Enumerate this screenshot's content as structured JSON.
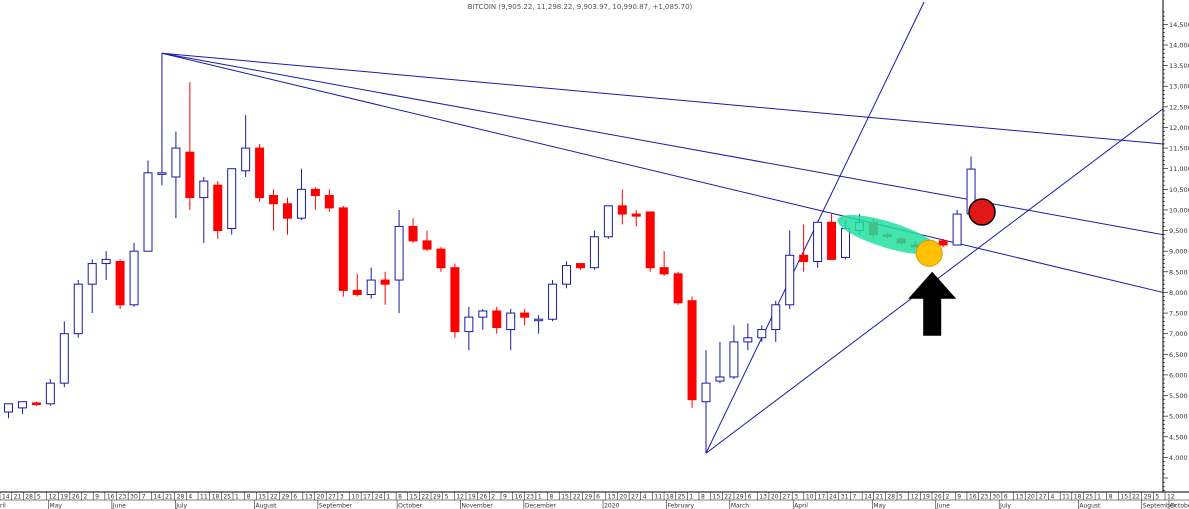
{
  "chart_data": {
    "type": "candlestick",
    "title": "BITCOIN (9,905.22, 11,298.22, 9,903.97, 10,990.87, +1,085.70)",
    "y_ticks": [
      4000,
      4500,
      5000,
      5500,
      6000,
      6500,
      7000,
      7500,
      8000,
      8500,
      9000,
      9500,
      10000,
      10500,
      11000,
      11500,
      12000,
      12500,
      13000,
      13500,
      14000,
      14500
    ],
    "ylim": [
      3500,
      14800
    ],
    "x_day_ticks": [
      "14",
      "21",
      "28",
      "5",
      "12",
      "19",
      "26",
      "2",
      "9",
      "16",
      "23",
      "30",
      "7",
      "14",
      "21",
      "28",
      "4",
      "11",
      "18",
      "25",
      "1",
      "8",
      "15",
      "22",
      "29",
      "6",
      "13",
      "20",
      "27",
      "3",
      "10",
      "17",
      "24",
      "1",
      "8",
      "15",
      "22",
      "29",
      "5",
      "12",
      "19",
      "26",
      "2",
      "9",
      "16",
      "23",
      "1",
      "8",
      "15",
      "22",
      "29",
      "6",
      "13",
      "20",
      "27",
      "4",
      "11",
      "18",
      "25",
      "1",
      "8",
      "15",
      "22",
      "29",
      "6",
      "13",
      "20",
      "27",
      "3",
      "10",
      "17",
      "24",
      "31",
      "7",
      "14",
      "21",
      "28",
      "5",
      "12",
      "19",
      "26",
      "2",
      "9",
      "16",
      "23",
      "30",
      "6",
      "13",
      "20",
      "27",
      "4",
      "11",
      "18",
      "25",
      "1",
      "8",
      "15",
      "22",
      "29",
      "5",
      "12"
    ],
    "x_month_labels": [
      {
        "label": "ril",
        "tick": 0
      },
      {
        "label": "May",
        "tick": 3
      },
      {
        "label": "June",
        "tick": 7
      },
      {
        "label": "July",
        "tick": 11
      },
      {
        "label": "August",
        "tick": 16
      },
      {
        "label": "September",
        "tick": 20
      },
      {
        "label": "October",
        "tick": 25
      },
      {
        "label": "November",
        "tick": 29
      },
      {
        "label": "December",
        "tick": 33
      },
      {
        "label": "2020",
        "tick": 38
      },
      {
        "label": "February",
        "tick": 42
      },
      {
        "label": "March",
        "tick": 46
      },
      {
        "label": "April",
        "tick": 50
      },
      {
        "label": "May",
        "tick": 55
      },
      {
        "label": "June",
        "tick": 59
      },
      {
        "label": "July",
        "tick": 63
      },
      {
        "label": "August",
        "tick": 68
      },
      {
        "label": "September",
        "tick": 72
      },
      {
        "label": "October",
        "tick": 76
      }
    ],
    "series": [
      {
        "values": [
          {
            "o": 5100,
            "h": 5300,
            "l": 4950,
            "c": 5300
          },
          {
            "o": 5200,
            "h": 5350,
            "l": 5050,
            "c": 5350
          },
          {
            "o": 5320,
            "h": 5350,
            "l": 5250,
            "c": 5280
          },
          {
            "o": 5300,
            "h": 5900,
            "l": 5250,
            "c": 5800
          },
          {
            "o": 5800,
            "h": 7300,
            "l": 5700,
            "c": 7000
          },
          {
            "o": 7000,
            "h": 8300,
            "l": 6900,
            "c": 8200
          },
          {
            "o": 8200,
            "h": 8800,
            "l": 7500,
            "c": 8700
          },
          {
            "o": 8700,
            "h": 9000,
            "l": 8300,
            "c": 8800
          },
          {
            "o": 8750,
            "h": 8800,
            "l": 7600,
            "c": 7700
          },
          {
            "o": 7700,
            "h": 9200,
            "l": 7650,
            "c": 9000
          },
          {
            "o": 9000,
            "h": 11200,
            "l": 9000,
            "c": 10900
          },
          {
            "o": 10900,
            "h": 13800,
            "l": 10600,
            "c": 10900
          },
          {
            "o": 10800,
            "h": 11900,
            "l": 9800,
            "c": 11500
          },
          {
            "o": 11400,
            "h": 13100,
            "l": 10000,
            "c": 10300
          },
          {
            "o": 10300,
            "h": 10800,
            "l": 9200,
            "c": 10700
          },
          {
            "o": 10600,
            "h": 10700,
            "l": 9300,
            "c": 9500
          },
          {
            "o": 9550,
            "h": 11000,
            "l": 9400,
            "c": 11000
          },
          {
            "o": 10950,
            "h": 12300,
            "l": 10800,
            "c": 11500
          },
          {
            "o": 11500,
            "h": 11600,
            "l": 10200,
            "c": 10300
          },
          {
            "o": 10350,
            "h": 10500,
            "l": 9500,
            "c": 10150
          },
          {
            "o": 10150,
            "h": 10300,
            "l": 9400,
            "c": 9800
          },
          {
            "o": 9800,
            "h": 11000,
            "l": 9750,
            "c": 10500
          },
          {
            "o": 10500,
            "h": 10550,
            "l": 10000,
            "c": 10350
          },
          {
            "o": 10350,
            "h": 10500,
            "l": 9950,
            "c": 10050
          },
          {
            "o": 10050,
            "h": 10100,
            "l": 7900,
            "c": 8050
          },
          {
            "o": 8050,
            "h": 8450,
            "l": 7900,
            "c": 7950
          },
          {
            "o": 7950,
            "h": 8600,
            "l": 7850,
            "c": 8300
          },
          {
            "o": 8300,
            "h": 8500,
            "l": 7700,
            "c": 8200
          },
          {
            "o": 8300,
            "h": 10000,
            "l": 7500,
            "c": 9600
          },
          {
            "o": 9600,
            "h": 9800,
            "l": 9200,
            "c": 9250
          },
          {
            "o": 9250,
            "h": 9500,
            "l": 9000,
            "c": 9050
          },
          {
            "o": 9050,
            "h": 9100,
            "l": 8500,
            "c": 8600
          },
          {
            "o": 8600,
            "h": 8700,
            "l": 6900,
            "c": 7050
          },
          {
            "o": 7050,
            "h": 7650,
            "l": 6600,
            "c": 7400
          },
          {
            "o": 7400,
            "h": 7600,
            "l": 7100,
            "c": 7550
          },
          {
            "o": 7550,
            "h": 7650,
            "l": 7000,
            "c": 7150
          },
          {
            "o": 7100,
            "h": 7600,
            "l": 6600,
            "c": 7500
          },
          {
            "o": 7500,
            "h": 7600,
            "l": 7200,
            "c": 7400
          },
          {
            "o": 7350,
            "h": 7450,
            "l": 7000,
            "c": 7350
          },
          {
            "o": 7350,
            "h": 8300,
            "l": 7300,
            "c": 8200
          },
          {
            "o": 8200,
            "h": 8750,
            "l": 8100,
            "c": 8650
          },
          {
            "o": 8700,
            "h": 8700,
            "l": 8550,
            "c": 8600
          },
          {
            "o": 8600,
            "h": 9500,
            "l": 8550,
            "c": 9350
          },
          {
            "o": 9350,
            "h": 10100,
            "l": 9300,
            "c": 10100
          },
          {
            "o": 10100,
            "h": 10500,
            "l": 9650,
            "c": 9900
          },
          {
            "o": 9900,
            "h": 10000,
            "l": 9600,
            "c": 9850
          },
          {
            "o": 9950,
            "h": 9950,
            "l": 8500,
            "c": 8600
          },
          {
            "o": 8600,
            "h": 9000,
            "l": 8400,
            "c": 8450
          },
          {
            "o": 8450,
            "h": 8500,
            "l": 7700,
            "c": 7750
          },
          {
            "o": 7800,
            "h": 7900,
            "l": 5200,
            "c": 5400
          },
          {
            "o": 5350,
            "h": 6600,
            "l": 4100,
            "c": 5800
          },
          {
            "o": 5850,
            "h": 6800,
            "l": 5800,
            "c": 5950
          },
          {
            "o": 5950,
            "h": 7200,
            "l": 5900,
            "c": 6800
          },
          {
            "o": 6800,
            "h": 7250,
            "l": 6600,
            "c": 6900
          },
          {
            "o": 6900,
            "h": 7200,
            "l": 6800,
            "c": 7100
          },
          {
            "o": 7100,
            "h": 7800,
            "l": 6800,
            "c": 7700
          },
          {
            "o": 7700,
            "h": 9500,
            "l": 7600,
            "c": 8900
          },
          {
            "o": 8900,
            "h": 9650,
            "l": 8500,
            "c": 8750
          },
          {
            "o": 8750,
            "h": 9700,
            "l": 8600,
            "c": 9700
          },
          {
            "o": 9700,
            "h": 9900,
            "l": 8800,
            "c": 8800
          },
          {
            "o": 8850,
            "h": 9750,
            "l": 8800,
            "c": 9550
          },
          {
            "o": 9500,
            "h": 9900,
            "l": 9400,
            "c": 9700
          },
          {
            "o": 9700,
            "h": 9800,
            "l": 9300,
            "c": 9400
          },
          {
            "o": 9400,
            "h": 9450,
            "l": 9300,
            "c": 9350
          },
          {
            "o": 9300,
            "h": 9350,
            "l": 9150,
            "c": 9200
          },
          {
            "o": 9150,
            "h": 9250,
            "l": 9100,
            "c": 9100
          },
          {
            "o": 9100,
            "h": 9300,
            "l": 9000,
            "c": 9250
          },
          {
            "o": 9250,
            "h": 9300,
            "l": 9100,
            "c": 9150
          },
          {
            "o": 9150,
            "h": 10000,
            "l": 9150,
            "c": 9900
          },
          {
            "o": 9905.22,
            "h": 11298.22,
            "l": 9903.97,
            "c": 10990.87
          }
        ]
      }
    ],
    "colors": {
      "up_candle": "#1a1aa8",
      "down_candle": "#ff0000",
      "trendline": "#1a1aa8",
      "highlight_ellipse": "#22e0a0",
      "yellow_circle": "#ffc000",
      "red_circle": "#e01818",
      "arrow": "#000000"
    },
    "annotations": [
      "green-ellipse-over-consolidation",
      "yellow-circle",
      "red-circle",
      "black-up-arrow"
    ]
  }
}
